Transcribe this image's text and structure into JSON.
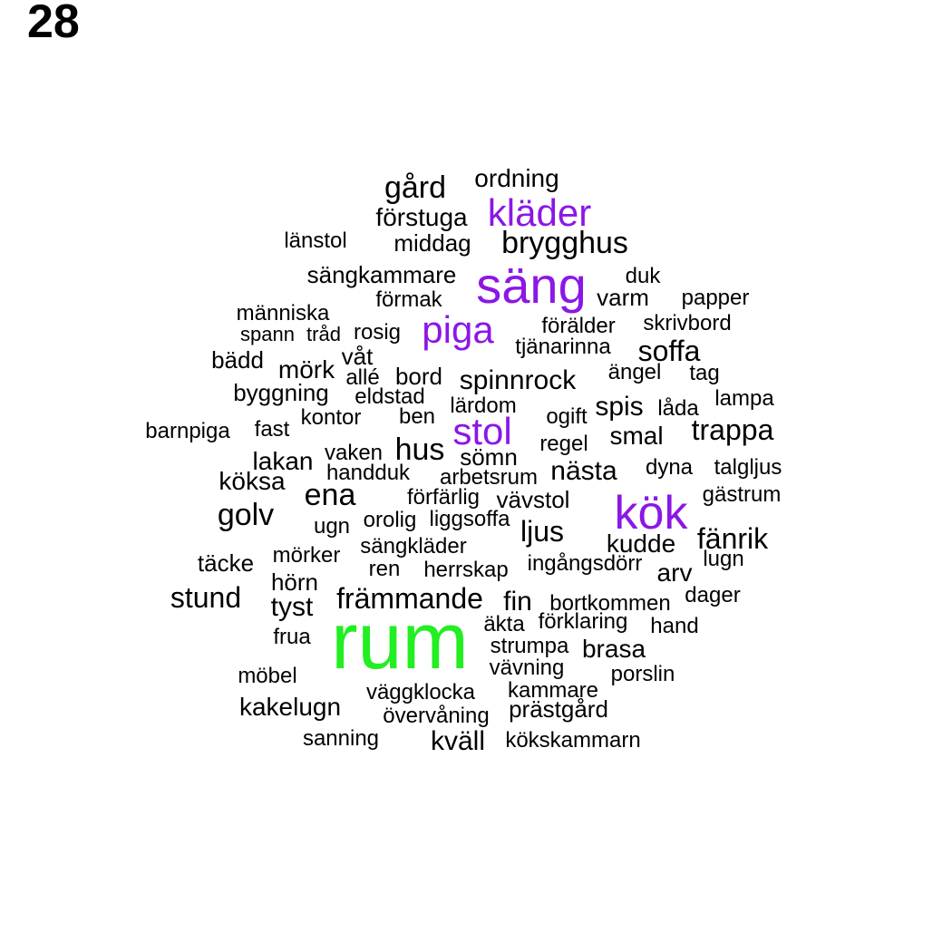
{
  "panel_label": "28",
  "colors": {
    "default": "#000000",
    "purple": "#8b17e6",
    "green": "#22ee22"
  },
  "words": [
    {
      "text": "ordning",
      "color": "default"
    },
    {
      "text": "gård",
      "color": "default"
    },
    {
      "text": "kläder",
      "color": "purple"
    },
    {
      "text": "förstuga",
      "color": "default"
    },
    {
      "text": "länstol",
      "color": "default"
    },
    {
      "text": "middag",
      "color": "default"
    },
    {
      "text": "brygghus",
      "color": "default"
    },
    {
      "text": "sängkammare",
      "color": "default"
    },
    {
      "text": "säng",
      "color": "purple"
    },
    {
      "text": "duk",
      "color": "default"
    },
    {
      "text": "förmak",
      "color": "default"
    },
    {
      "text": "varm",
      "color": "default"
    },
    {
      "text": "papper",
      "color": "default"
    },
    {
      "text": "människa",
      "color": "default"
    },
    {
      "text": "piga",
      "color": "purple"
    },
    {
      "text": "förälder",
      "color": "default"
    },
    {
      "text": "skrivbord",
      "color": "default"
    },
    {
      "text": "spann",
      "color": "default"
    },
    {
      "text": "tråd",
      "color": "default"
    },
    {
      "text": "rosig",
      "color": "default"
    },
    {
      "text": "tjänarinna",
      "color": "default"
    },
    {
      "text": "soffa",
      "color": "default"
    },
    {
      "text": "bädd",
      "color": "default"
    },
    {
      "text": "våt",
      "color": "default"
    },
    {
      "text": "mörk",
      "color": "default"
    },
    {
      "text": "allé",
      "color": "default"
    },
    {
      "text": "bord",
      "color": "default"
    },
    {
      "text": "spinnrock",
      "color": "default"
    },
    {
      "text": "ängel",
      "color": "default"
    },
    {
      "text": "tag",
      "color": "default"
    },
    {
      "text": "byggning",
      "color": "default"
    },
    {
      "text": "eldstad",
      "color": "default"
    },
    {
      "text": "lärdom",
      "color": "default"
    },
    {
      "text": "lampa",
      "color": "default"
    },
    {
      "text": "spis",
      "color": "default"
    },
    {
      "text": "låda",
      "color": "default"
    },
    {
      "text": "kontor",
      "color": "default"
    },
    {
      "text": "ben",
      "color": "default"
    },
    {
      "text": "ogift",
      "color": "default"
    },
    {
      "text": "barnpiga",
      "color": "default"
    },
    {
      "text": "fast",
      "color": "default"
    },
    {
      "text": "stol",
      "color": "purple"
    },
    {
      "text": "trappa",
      "color": "default"
    },
    {
      "text": "smal",
      "color": "default"
    },
    {
      "text": "regel",
      "color": "default"
    },
    {
      "text": "hus",
      "color": "default"
    },
    {
      "text": "vaken",
      "color": "default"
    },
    {
      "text": "sömn",
      "color": "default"
    },
    {
      "text": "lakan",
      "color": "default"
    },
    {
      "text": "dyna",
      "color": "default"
    },
    {
      "text": "talgljus",
      "color": "default"
    },
    {
      "text": "handduk",
      "color": "default"
    },
    {
      "text": "nästa",
      "color": "default"
    },
    {
      "text": "köksa",
      "color": "default"
    },
    {
      "text": "arbetsrum",
      "color": "default"
    },
    {
      "text": "ena",
      "color": "default"
    },
    {
      "text": "gästrum",
      "color": "default"
    },
    {
      "text": "förfärlig",
      "color": "default"
    },
    {
      "text": "vävstol",
      "color": "default"
    },
    {
      "text": "kök",
      "color": "purple"
    },
    {
      "text": "golv",
      "color": "default"
    },
    {
      "text": "ugn",
      "color": "default"
    },
    {
      "text": "orolig",
      "color": "default"
    },
    {
      "text": "liggsoffa",
      "color": "default"
    },
    {
      "text": "ljus",
      "color": "default"
    },
    {
      "text": "fänrik",
      "color": "default"
    },
    {
      "text": "kudde",
      "color": "default"
    },
    {
      "text": "sängkläder",
      "color": "default"
    },
    {
      "text": "mörker",
      "color": "default"
    },
    {
      "text": "täcke",
      "color": "default"
    },
    {
      "text": "lugn",
      "color": "default"
    },
    {
      "text": "ingångsdörr",
      "color": "default"
    },
    {
      "text": "ren",
      "color": "default"
    },
    {
      "text": "herrskap",
      "color": "default"
    },
    {
      "text": "arv",
      "color": "default"
    },
    {
      "text": "hörn",
      "color": "default"
    },
    {
      "text": "stund",
      "color": "default"
    },
    {
      "text": "främmande",
      "color": "default"
    },
    {
      "text": "fin",
      "color": "default"
    },
    {
      "text": "dager",
      "color": "default"
    },
    {
      "text": "bortkommen",
      "color": "default"
    },
    {
      "text": "tyst",
      "color": "default"
    },
    {
      "text": "äkta",
      "color": "default"
    },
    {
      "text": "förklaring",
      "color": "default"
    },
    {
      "text": "hand",
      "color": "default"
    },
    {
      "text": "frua",
      "color": "default"
    },
    {
      "text": "rum",
      "color": "green"
    },
    {
      "text": "strumpa",
      "color": "default"
    },
    {
      "text": "brasa",
      "color": "default"
    },
    {
      "text": "vävning",
      "color": "default"
    },
    {
      "text": "möbel",
      "color": "default"
    },
    {
      "text": "porslin",
      "color": "default"
    },
    {
      "text": "väggklocka",
      "color": "default"
    },
    {
      "text": "kammare",
      "color": "default"
    },
    {
      "text": "kakelugn",
      "color": "default"
    },
    {
      "text": "prästgård",
      "color": "default"
    },
    {
      "text": "övervåning",
      "color": "default"
    },
    {
      "text": "sanning",
      "color": "default"
    },
    {
      "text": "kväll",
      "color": "default"
    },
    {
      "text": "kökskammarn",
      "color": "default"
    }
  ]
}
